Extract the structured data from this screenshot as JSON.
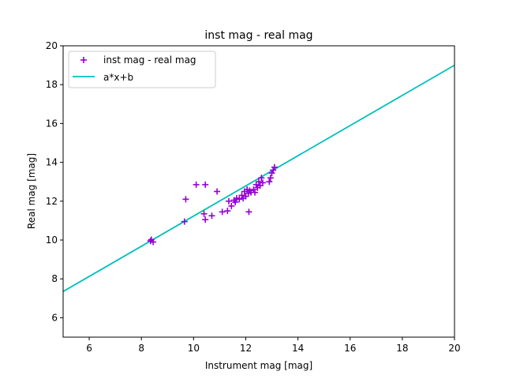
{
  "chart_data": {
    "type": "scatter",
    "title": "inst mag - real mag",
    "xlabel": "Instrument mag [mag]",
    "ylabel": "Real mag [mag]",
    "xlim": [
      5,
      20
    ],
    "ylim": [
      5,
      20
    ],
    "xticks": [
      6,
      8,
      10,
      12,
      14,
      16,
      18,
      20
    ],
    "yticks": [
      6,
      8,
      10,
      12,
      14,
      16,
      18,
      20
    ],
    "grid": false,
    "legend_position": "top-left",
    "series": [
      {
        "name": "inst mag - real mag",
        "kind": "scatter",
        "marker": "plus",
        "color": "#9400d3",
        "points": [
          [
            8.35,
            9.95
          ],
          [
            8.45,
            9.9
          ],
          [
            8.38,
            10.02
          ],
          [
            9.65,
            10.95
          ],
          [
            9.7,
            12.1
          ],
          [
            10.1,
            12.85
          ],
          [
            10.45,
            12.85
          ],
          [
            10.4,
            11.35
          ],
          [
            10.45,
            11.05
          ],
          [
            10.7,
            11.25
          ],
          [
            10.9,
            12.5
          ],
          [
            11.1,
            11.45
          ],
          [
            11.3,
            11.5
          ],
          [
            11.35,
            12.0
          ],
          [
            11.45,
            11.75
          ],
          [
            11.55,
            12.05
          ],
          [
            11.6,
            11.95
          ],
          [
            11.65,
            12.15
          ],
          [
            11.75,
            12.1
          ],
          [
            11.85,
            12.3
          ],
          [
            11.9,
            12.15
          ],
          [
            11.95,
            12.5
          ],
          [
            12.0,
            12.25
          ],
          [
            12.05,
            12.6
          ],
          [
            12.1,
            12.4
          ],
          [
            12.12,
            11.45
          ],
          [
            12.15,
            12.55
          ],
          [
            12.2,
            12.45
          ],
          [
            12.3,
            12.6
          ],
          [
            12.35,
            12.45
          ],
          [
            12.4,
            12.85
          ],
          [
            12.45,
            12.7
          ],
          [
            12.5,
            13.0
          ],
          [
            12.55,
            12.8
          ],
          [
            12.6,
            13.2
          ],
          [
            12.65,
            12.95
          ],
          [
            12.9,
            13.0
          ],
          [
            12.95,
            13.2
          ],
          [
            13.0,
            13.45
          ],
          [
            13.05,
            13.6
          ],
          [
            13.1,
            13.75
          ]
        ]
      },
      {
        "name": "a*x+b",
        "kind": "line",
        "color": "#00bfbf",
        "points": [
          [
            5,
            7.35
          ],
          [
            20,
            19.0
          ]
        ]
      }
    ]
  }
}
